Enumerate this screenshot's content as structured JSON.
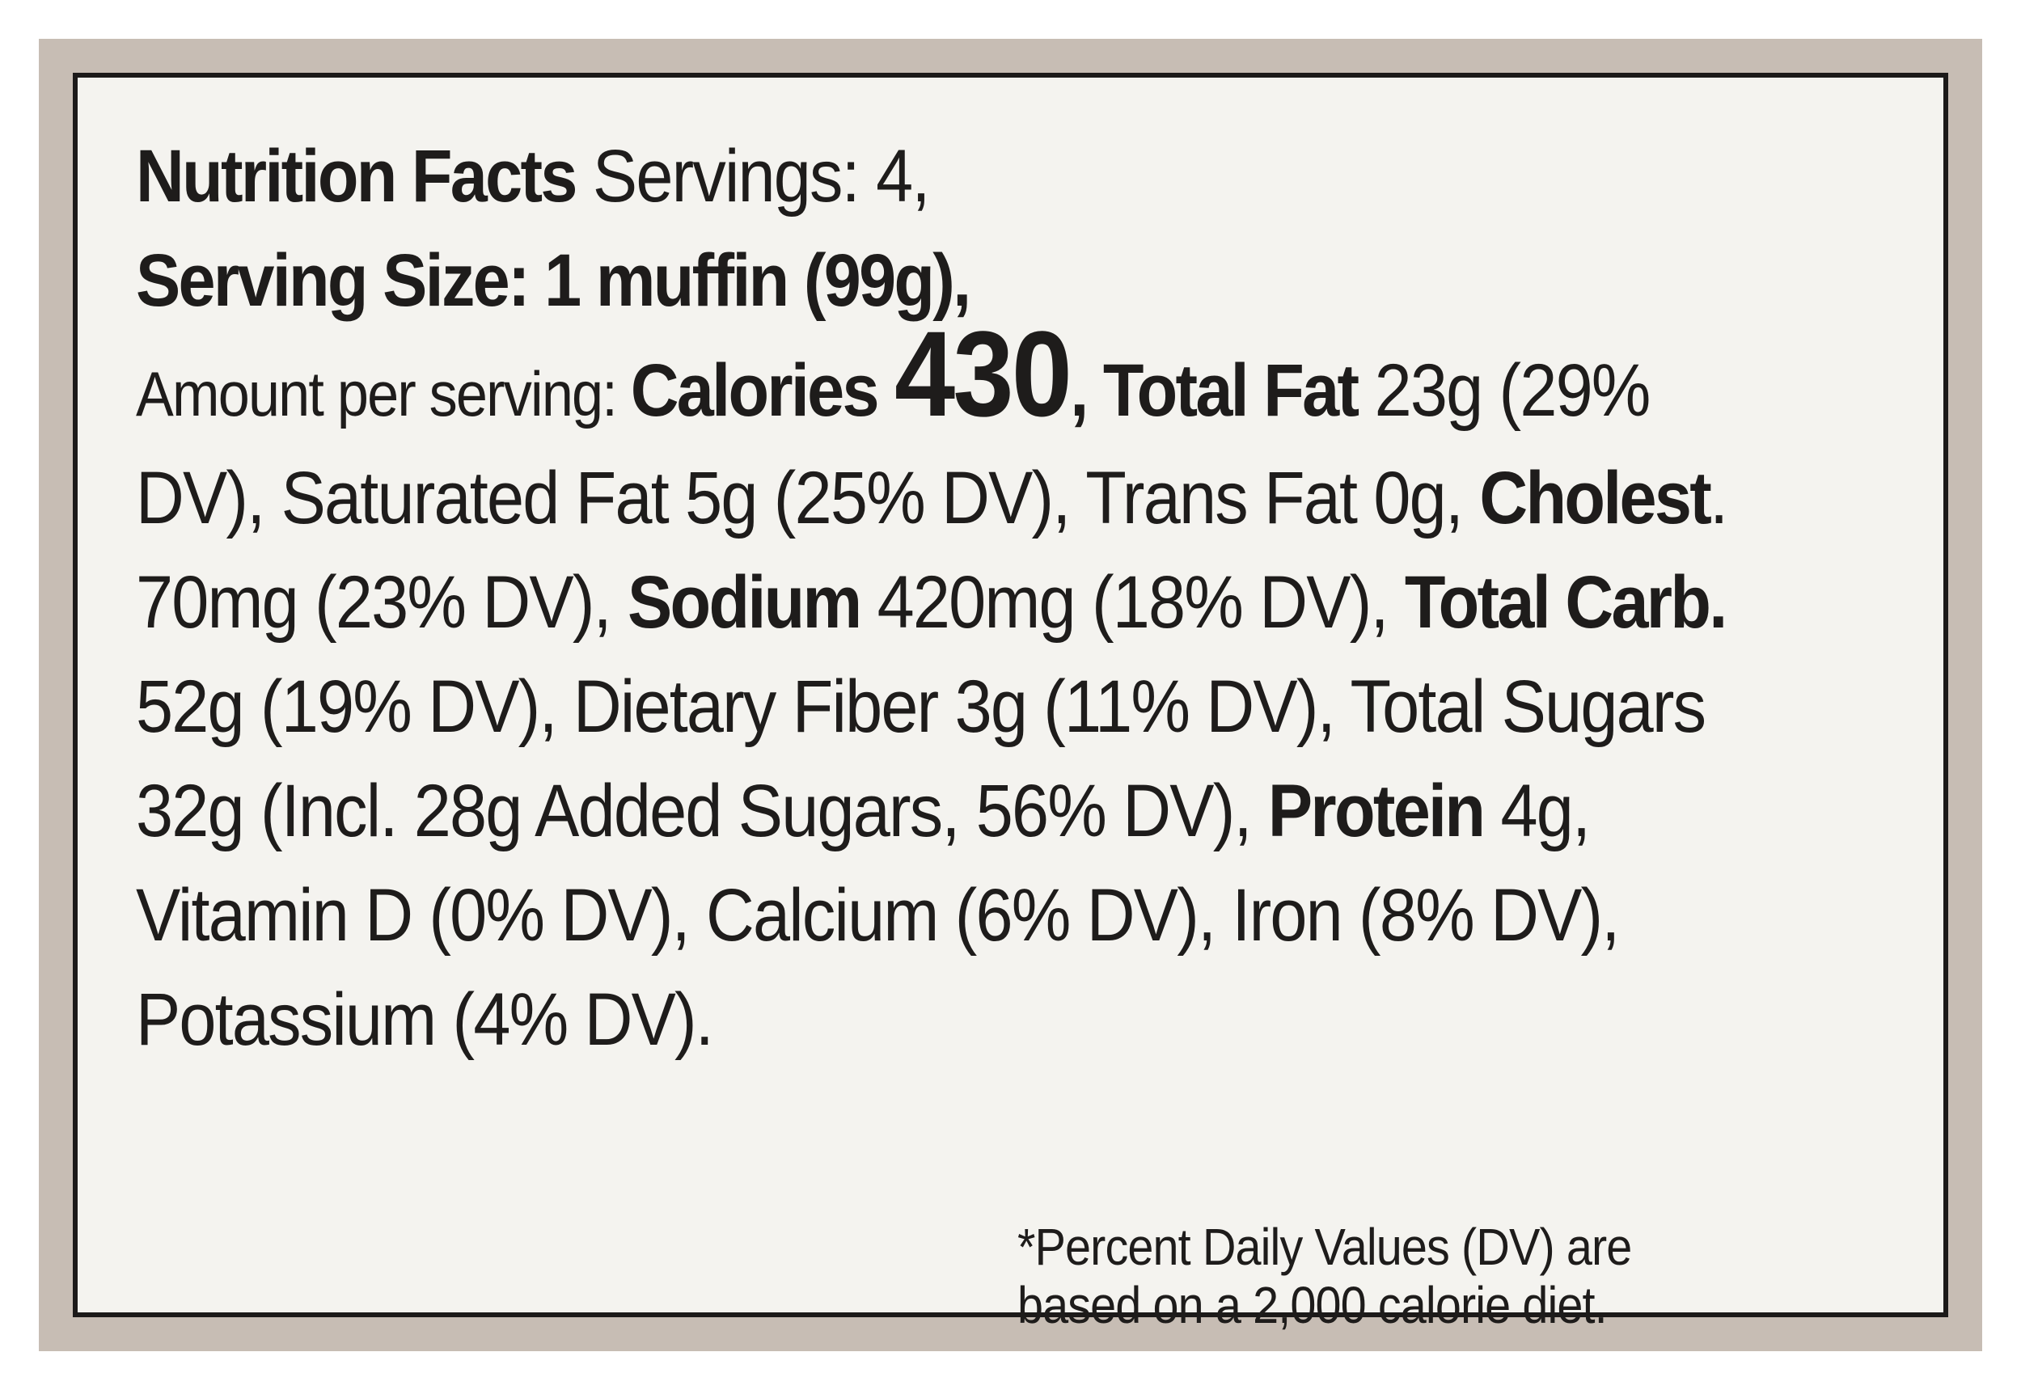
{
  "label": {
    "title": "Nutrition Facts",
    "servings": " Servings: 4,",
    "serving_size": "Serving Size: 1 muffin (99g),",
    "amount_per_serving": "Amount per serving: ",
    "calories_label": "Calories",
    "calories_value": "430",
    "comma_after_calories": ", ",
    "total_fat_label": "Total Fat",
    "total_fat_text": " 23g (29% DV), Saturated Fat 5g (25% DV), Trans Fat 0g, ",
    "cholesterol_label": "Cholest",
    "cholesterol_text": ". 70mg (23% DV), ",
    "sodium_label": "Sodium",
    "sodium_text": " 420mg (18% DV), ",
    "total_carb_label": "Total Carb.",
    "total_carb_text": " 52g (19% DV), Dietary Fiber 3g (11% DV), Total Sugars 32g (Incl. 28g Added Sugars, 56% DV), ",
    "protein_label": "Protein",
    "protein_text": " 4g, Vitamin D (0% DV), Calcium (6% DV), Iron (8% DV), Potassium (4% DV).",
    "footnote_line1": "*Percent Daily Values (DV) are",
    "footnote_line2": "based on a 2,000 calorie diet."
  }
}
